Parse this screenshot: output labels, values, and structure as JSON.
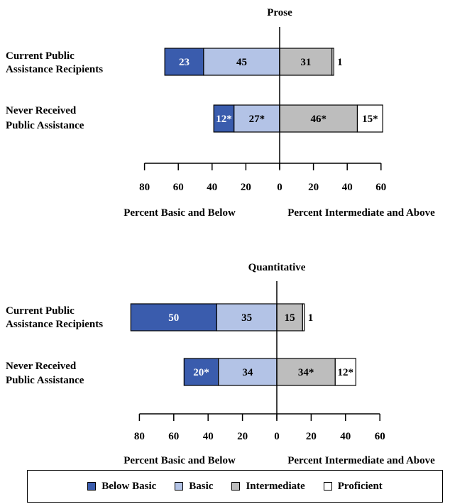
{
  "chart_data": [
    {
      "type": "bar",
      "title": "Prose",
      "categories": [
        "Current Public\nAssistance Recipients",
        "Never Received\nPublic Assistance"
      ],
      "series": [
        {
          "name": "Below Basic",
          "values": [
            23,
            12
          ],
          "labels": [
            "23",
            "12*"
          ]
        },
        {
          "name": "Basic",
          "values": [
            45,
            27
          ],
          "labels": [
            "45",
            "27*"
          ]
        },
        {
          "name": "Intermediate",
          "values": [
            31,
            46
          ],
          "labels": [
            "31",
            "46*"
          ]
        },
        {
          "name": "Proficient",
          "values": [
            1,
            15
          ],
          "labels": [
            "1",
            "15*"
          ]
        }
      ],
      "ticks": [
        "80",
        "60",
        "40",
        "20",
        "0",
        "20",
        "40",
        "60"
      ],
      "xlim": [
        -80,
        60
      ],
      "xlabel_left": "Percent Basic and Below",
      "xlabel_right": "Percent Intermediate and Above"
    },
    {
      "type": "bar",
      "title": "Quantitative",
      "categories": [
        "Current Public\nAssistance Recipients",
        "Never Received\nPublic Assistance"
      ],
      "series": [
        {
          "name": "Below Basic",
          "values": [
            50,
            20
          ],
          "labels": [
            "50",
            "20*"
          ]
        },
        {
          "name": "Basic",
          "values": [
            35,
            34
          ],
          "labels": [
            "35",
            "34"
          ]
        },
        {
          "name": "Intermediate",
          "values": [
            15,
            34
          ],
          "labels": [
            "15",
            "34*"
          ]
        },
        {
          "name": "Proficient",
          "values": [
            1,
            12
          ],
          "labels": [
            "1",
            "12*"
          ]
        }
      ],
      "ticks": [
        "80",
        "60",
        "40",
        "20",
        "0",
        "20",
        "40",
        "60"
      ],
      "xlim": [
        -80,
        60
      ],
      "xlabel_left": "Percent Basic and Below",
      "xlabel_right": "Percent Intermediate and Above"
    }
  ],
  "legend": [
    {
      "label": "Below Basic",
      "color": "#3a5cad"
    },
    {
      "label": "Basic",
      "color": "#b3c3e6"
    },
    {
      "label": "Intermediate",
      "color": "#bdbdbd"
    },
    {
      "label": "Proficient",
      "color": "#ffffff"
    }
  ]
}
